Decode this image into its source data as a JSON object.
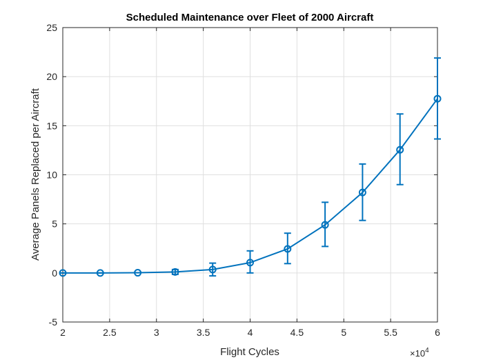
{
  "chart_data": {
    "type": "line",
    "title": "Scheduled Maintenance over Fleet of 2000 Aircraft",
    "xlabel": "Flight Cycles",
    "ylabel": "Average Panels Replaced per Aircraft",
    "x_multiplier_label": "×10",
    "x_multiplier_exponent": "4",
    "xlim": [
      2,
      6
    ],
    "ylim": [
      -5,
      25
    ],
    "xticks": [
      "2",
      "2.5",
      "3",
      "3.5",
      "4",
      "4.5",
      "5",
      "5.5",
      "6"
    ],
    "yticks": [
      "-5",
      "0",
      "5",
      "10",
      "15",
      "20",
      "25"
    ],
    "grid": true,
    "color": "#0072BD",
    "series": [
      {
        "x": [
          2.0,
          2.4,
          2.8,
          3.2,
          3.6,
          4.0,
          4.4,
          4.8,
          5.2,
          5.6,
          6.0
        ],
        "values": [
          0.0,
          0.0,
          0.02,
          0.1,
          0.35,
          1.05,
          2.45,
          4.9,
          8.2,
          12.55,
          17.75
        ],
        "err_low": [
          0.0,
          0.0,
          0.0,
          0.25,
          0.65,
          1.05,
          1.5,
          2.2,
          2.85,
          3.55,
          4.1
        ],
        "err_high": [
          0.0,
          0.0,
          0.0,
          0.25,
          0.65,
          1.2,
          1.6,
          2.3,
          2.9,
          3.65,
          4.15
        ]
      }
    ]
  }
}
